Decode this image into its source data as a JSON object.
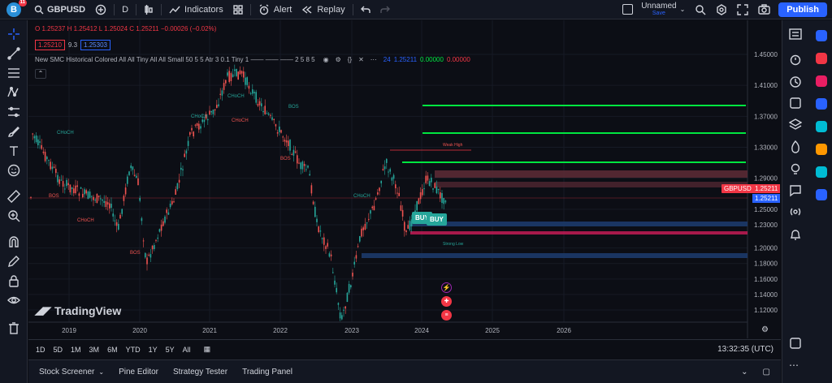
{
  "topbar": {
    "avatar_letter": "B",
    "notif_count": "11",
    "symbol": "GBPUSD",
    "interval": "D",
    "indicators_label": "Indicators",
    "alert_label": "Alert",
    "replay_label": "Replay",
    "layout_name": "Unnamed",
    "layout_status": "Save",
    "publish_label": "Publish"
  },
  "legend": {
    "ohlc_o": "O 1.25237",
    "ohlc_h": "H 1.25412",
    "ohlc_l": "L 1.25024",
    "ohlc_c": "C 1.25211",
    "ohlc_change": "−0.00026 (−0.02%)",
    "bid": "1.25210",
    "spread": "9.3",
    "ask": "1.25303",
    "indicator": "New SMC Historical Colored All All Tiny All All Small 50 5 5 Atr 3 0.1 Tiny 1 —— —— —— 2 5 8 5",
    "indicator_values": [
      "24",
      "1.25211",
      "0.00000",
      "0.00000"
    ]
  },
  "price_axis": {
    "ticks": [
      "1.45000",
      "1.41000",
      "1.37000",
      "1.33000",
      "1.29000",
      "1.25000",
      "1.23000",
      "1.20000",
      "1.18000",
      "1.16000",
      "1.14000",
      "1.12000"
    ],
    "symbol_tag": "GBPUSD",
    "last_price": "1.25211",
    "last_price_2": "1.25211"
  },
  "time_axis": {
    "ticks": [
      "2019",
      "2020",
      "2021",
      "2022",
      "2023",
      "2024",
      "2025",
      "2026"
    ]
  },
  "chart_labels": {
    "chochs": [
      "CHoCH",
      "CHoCH",
      "CHoCH",
      "CHoCH",
      "CHoCH",
      "CHoCH"
    ],
    "bos": [
      "BOS",
      "BOS",
      "BOS",
      "BOS"
    ],
    "weak_high": "Weak High",
    "strong_low": "Strong Low",
    "buy_1": "BUY",
    "buy_2": "BUY",
    "watermark": "TradingView"
  },
  "timeframes": [
    "1D",
    "5D",
    "1M",
    "3M",
    "6M",
    "YTD",
    "1Y",
    "5Y",
    "All"
  ],
  "clock": "13:32:35 (UTC)",
  "bottom_tabs": [
    "Stock Screener",
    "Pine Editor",
    "Strategy Tester",
    "Trading Panel"
  ],
  "colors": {
    "bull": "#26a69a",
    "bear": "#ef5350",
    "green_line": "#00e640",
    "accent": "#2962ff"
  }
}
